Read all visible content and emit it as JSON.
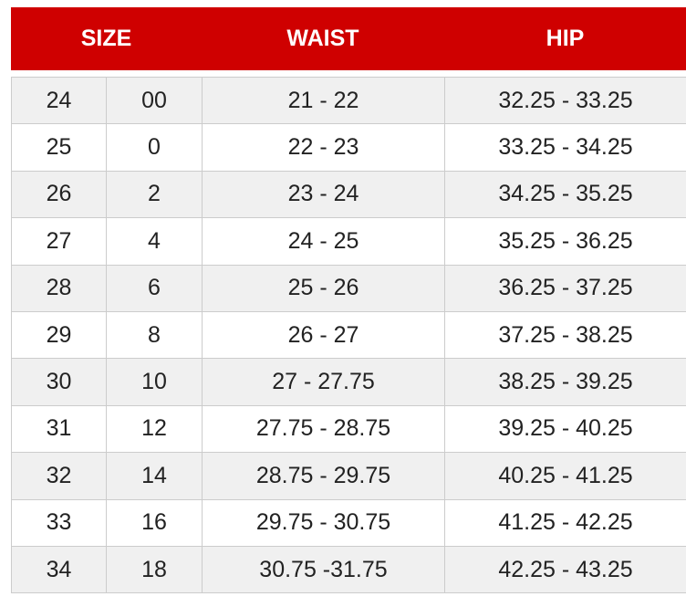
{
  "header": {
    "size": "SIZE",
    "waist": "WAIST",
    "hip": "HIP"
  },
  "colors": {
    "header_bg": "#cf0000",
    "header_text": "#ffffff",
    "row_alt": "#f0f0f0",
    "border": "#cccccc"
  },
  "rows": [
    [
      "24",
      "00",
      "21 - 22",
      "32.25 - 33.25"
    ],
    [
      "25",
      "0",
      "22 - 23",
      "33.25 - 34.25"
    ],
    [
      "26",
      "2",
      "23 - 24",
      "34.25 - 35.25"
    ],
    [
      "27",
      "4",
      "24 - 25",
      "35.25 - 36.25"
    ],
    [
      "28",
      "6",
      "25 - 26",
      "36.25 - 37.25"
    ],
    [
      "29",
      "8",
      "26 - 27",
      "37.25 - 38.25"
    ],
    [
      "30",
      "10",
      "27 - 27.75",
      "38.25 - 39.25"
    ],
    [
      "31",
      "12",
      "27.75 - 28.75",
      "39.25 - 40.25"
    ],
    [
      "32",
      "14",
      "28.75 - 29.75",
      "40.25 - 41.25"
    ],
    [
      "33",
      "16",
      "29.75 - 30.75",
      "41.25 - 42.25"
    ],
    [
      "34",
      "18",
      "30.75 -31.75",
      "42.25 - 43.25"
    ]
  ]
}
